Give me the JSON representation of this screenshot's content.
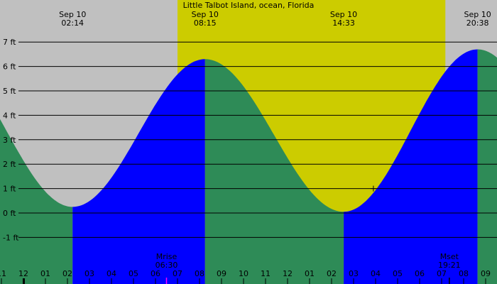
{
  "chart_data": {
    "type": "area",
    "title": "Little Talbot Island, ocean, Florida",
    "y_unit": "ft",
    "ylim": [
      -2,
      7.5
    ],
    "y_ticks": [
      {
        "value": 7,
        "label": "7 ft"
      },
      {
        "value": 6,
        "label": "6 ft"
      },
      {
        "value": 5,
        "label": "5 ft"
      },
      {
        "value": 4,
        "label": "4 ft"
      },
      {
        "value": 3,
        "label": "3 ft"
      },
      {
        "value": 2,
        "label": "2 ft"
      },
      {
        "value": 1,
        "label": "1 ft"
      },
      {
        "value": 0,
        "label": "0 ft"
      },
      {
        "value": -1,
        "label": "-1 ft"
      }
    ],
    "x_range_hours": [
      -2.5,
      21.0
    ],
    "x_tick_labels": [
      "11",
      "12",
      "01",
      "02",
      "03",
      "04",
      "05",
      "06",
      "07",
      "08",
      "09",
      "10",
      "11",
      "12",
      "01",
      "02",
      "03",
      "04",
      "05",
      "06",
      "07",
      "08",
      "09"
    ],
    "x_tick_start_hour": -1,
    "tide_events": [
      {
        "date": "Sep 10",
        "time": "02:14",
        "hour": 2.233,
        "height": 0.25
      },
      {
        "date": "Sep 10",
        "time": "08:15",
        "hour": 8.25,
        "height": 6.3
      },
      {
        "date": "Sep 10",
        "time": "14:33",
        "hour": 14.55,
        "height": 0.05
      },
      {
        "date": "Sep 10",
        "time": "20:38",
        "hour": 20.633,
        "height": 6.7
      }
    ],
    "start_height": 3.9,
    "end_height": 6.45,
    "daylight": {
      "start_hour": 7.0,
      "end_hour": 19.17
    },
    "moon": [
      {
        "label": "Mrise",
        "time": "06:30",
        "hour": 6.5
      },
      {
        "label": "Mset",
        "time": "19:21",
        "hour": 19.35
      }
    ],
    "colors": {
      "night": "#c0c0c0",
      "day": "#cccc00",
      "rising": "#0000ff",
      "falling": "#2e8b57",
      "grid": "#000000",
      "moonrise_marker": "#ff00ff"
    }
  }
}
